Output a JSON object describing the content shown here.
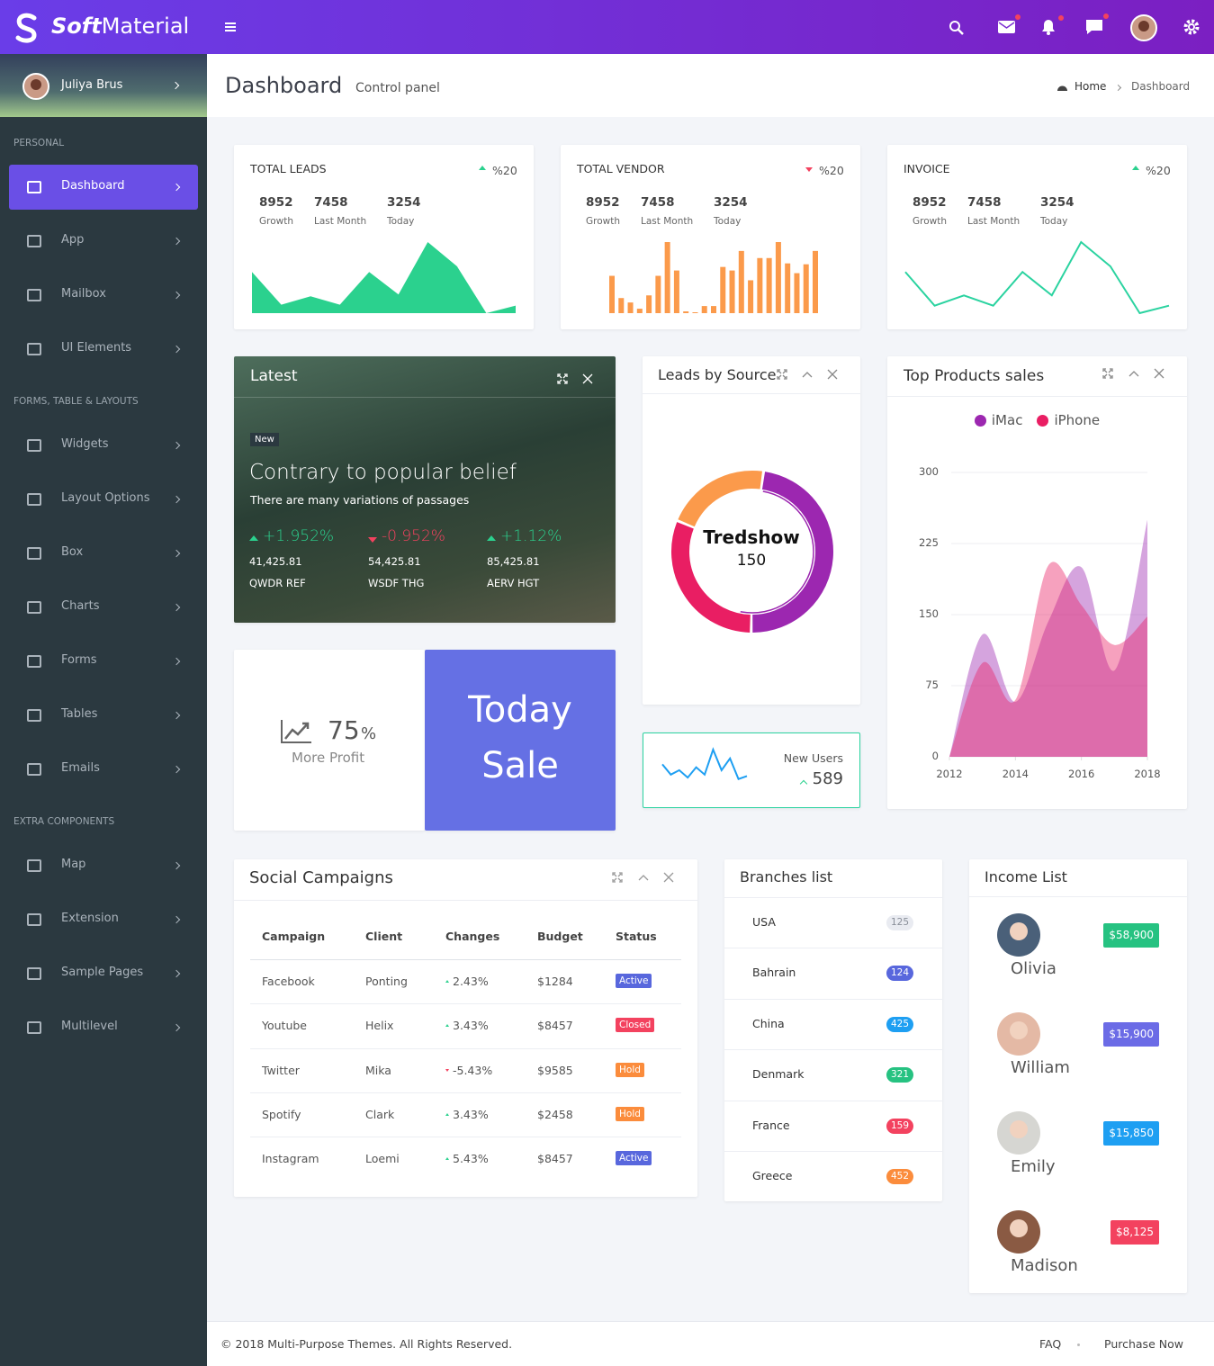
{
  "brand": {
    "strong": "Soft",
    "light": "Material"
  },
  "user": {
    "name": "Juliya Brus"
  },
  "sidebar": [
    {
      "title": "PERSONAL",
      "items": [
        {
          "label": "Dashboard",
          "active": true
        },
        {
          "label": "App"
        },
        {
          "label": "Mailbox"
        },
        {
          "label": "UI Elements"
        }
      ]
    },
    {
      "title": "FORMS, TABLE & LAYOUTS",
      "items": [
        {
          "label": "Widgets"
        },
        {
          "label": "Layout Options"
        },
        {
          "label": "Box"
        },
        {
          "label": "Charts"
        },
        {
          "label": "Forms"
        },
        {
          "label": "Tables"
        },
        {
          "label": "Emails"
        }
      ]
    },
    {
      "title": "EXTRA COMPONENTS",
      "items": [
        {
          "label": "Map"
        },
        {
          "label": "Extension"
        },
        {
          "label": "Sample Pages"
        },
        {
          "label": "Multilevel"
        }
      ]
    }
  ],
  "header": {
    "title": "Dashboard",
    "subtitle": "Control panel",
    "breadcrumb": [
      "Home",
      "Dashboard"
    ]
  },
  "stat_cards": [
    {
      "title": "TOTAL LEADS",
      "trend": "up",
      "change": "%20",
      "stats": [
        {
          "value": 8952,
          "label": "Growth"
        },
        {
          "value": 7458,
          "label": "Last Month"
        },
        {
          "value": 3254,
          "label": "Today"
        }
      ],
      "chart": {
        "type": "area",
        "color": "#2bd18e",
        "values": [
          44,
          9,
          18,
          9,
          44,
          20,
          76,
          50,
          0,
          8
        ]
      }
    },
    {
      "title": "TOTAL VENDOR",
      "trend": "down",
      "change": "%20",
      "stats": [
        {
          "value": 8952,
          "label": "Growth"
        },
        {
          "value": 7458,
          "label": "Last Month"
        },
        {
          "value": 3254,
          "label": "Today"
        }
      ],
      "chart": {
        "type": "bar",
        "color": "#fb9a4b",
        "values": [
          42,
          17,
          12,
          5,
          20,
          42,
          80,
          48,
          2,
          1,
          8,
          8,
          52,
          48,
          70,
          37,
          62,
          62,
          80,
          56,
          45,
          55,
          70
        ]
      }
    },
    {
      "title": "INVOICE",
      "trend": "up",
      "change": "%20",
      "stats": [
        {
          "value": 8952,
          "label": "Growth"
        },
        {
          "value": 7458,
          "label": "Last Month"
        },
        {
          "value": 3254,
          "label": "Today"
        }
      ],
      "chart": {
        "type": "line",
        "color": "#2bd3a0",
        "values": [
          44,
          8,
          19,
          8,
          44,
          19,
          76,
          50,
          0,
          8
        ]
      }
    }
  ],
  "latest": {
    "title": "Latest",
    "badge": "New",
    "heading": "Contrary to popular belief",
    "text": "There are many variations of passages",
    "stats": [
      {
        "trend": "up",
        "change": "+1.952%",
        "value": "41,425.81",
        "name": "QWDR REF"
      },
      {
        "trend": "down",
        "change": "-0.952%",
        "value": "54,425.81",
        "name": "WSDF THG"
      },
      {
        "trend": "up",
        "change": "+1.12%",
        "value": "85,425.81",
        "name": "AERV HGT"
      }
    ]
  },
  "profit": {
    "value": 75,
    "unit": "%",
    "label": "More Profit"
  },
  "today_sale": {
    "text": "Today Sale"
  },
  "leads_by_source": {
    "title": "Leads by Source",
    "chart": {
      "type": "donut",
      "values": [
        48,
        31,
        21
      ],
      "colors": [
        "#9c27b0",
        "#e91e63",
        "#fb9a4b"
      ],
      "center_label": "Tredshow",
      "center_value": 150
    }
  },
  "new_users": {
    "label": "New Users",
    "value": 589,
    "chart": {
      "type": "line",
      "color": "#1e9ff2",
      "values": [
        12,
        5,
        8,
        3,
        10,
        5,
        22,
        8,
        16,
        2,
        4
      ]
    }
  },
  "top_products": {
    "title": "Top Products sales",
    "chart_data": {
      "type": "area",
      "x": [
        2012,
        2013,
        2014,
        2015,
        2016,
        2017,
        2018
      ],
      "series": [
        {
          "name": "iMac",
          "color": "#9c27b0",
          "values": [
            0,
            129,
            58,
            143,
            200,
            91,
            250
          ]
        },
        {
          "name": "iPhone",
          "color": "#e91e63",
          "values": [
            0,
            99,
            60,
            202,
            160,
            118,
            148
          ]
        }
      ],
      "xlim": [
        2012,
        2018
      ],
      "xticks": [
        2012,
        2014,
        2016,
        2018
      ],
      "ylim": [
        0,
        300
      ],
      "yticks": [
        0,
        75,
        150,
        225,
        300
      ],
      "grid": true,
      "legend": "top"
    }
  },
  "social_campaigns": {
    "title": "Social Campaigns",
    "columns": [
      "Campaign",
      "Client",
      "Changes",
      "Budget",
      "Status"
    ],
    "rows": [
      {
        "campaign": "Facebook",
        "client": "Ponting",
        "trend": "up",
        "change": "2.43%",
        "budget": "$1284",
        "status": "Active",
        "status_color": "#5867dd"
      },
      {
        "campaign": "Youtube",
        "client": "Helix",
        "trend": "up",
        "change": "3.43%",
        "budget": "$8457",
        "status": "Closed",
        "status_color": "#f3425f"
      },
      {
        "campaign": "Twitter",
        "client": "Mika",
        "trend": "down",
        "change": "-5.43%",
        "budget": "$9585",
        "status": "Hold",
        "status_color": "#fb8c3c"
      },
      {
        "campaign": "Spotify",
        "client": "Clark",
        "trend": "up",
        "change": "3.43%",
        "budget": "$2458",
        "status": "Hold",
        "status_color": "#fb8c3c"
      },
      {
        "campaign": "Instagram",
        "client": "Loemi",
        "trend": "up",
        "change": "5.43%",
        "budget": "$8457",
        "status": "Active",
        "status_color": "#5867dd"
      }
    ]
  },
  "branches": {
    "title": "Branches list",
    "items": [
      {
        "name": "USA",
        "count": 125,
        "color": "#e9ebf1",
        "text_color": "#8a8f99"
      },
      {
        "name": "Bahrain",
        "count": 124,
        "color": "#5867dd"
      },
      {
        "name": "China",
        "count": 425,
        "color": "#1e9ff2"
      },
      {
        "name": "Denmark",
        "count": 321,
        "color": "#26c281"
      },
      {
        "name": "France",
        "count": 159,
        "color": "#f3425f"
      },
      {
        "name": "Greece",
        "count": 452,
        "color": "#fb8c3c"
      }
    ]
  },
  "income": {
    "title": "Income List",
    "items": [
      {
        "name": "Olivia",
        "amount": "$58,900",
        "color": "#26c281"
      },
      {
        "name": "William",
        "amount": "$15,900",
        "color": "#6b6be6"
      },
      {
        "name": "Emily",
        "amount": "$15,850",
        "color": "#1e9ff2"
      },
      {
        "name": "Madison",
        "amount": "$8,125",
        "color": "#f3425f"
      }
    ]
  },
  "footer": {
    "copyright": "© 2018 Multi-Purpose Themes. All Rights Reserved.",
    "links": [
      "FAQ",
      "Purchase Now"
    ]
  }
}
